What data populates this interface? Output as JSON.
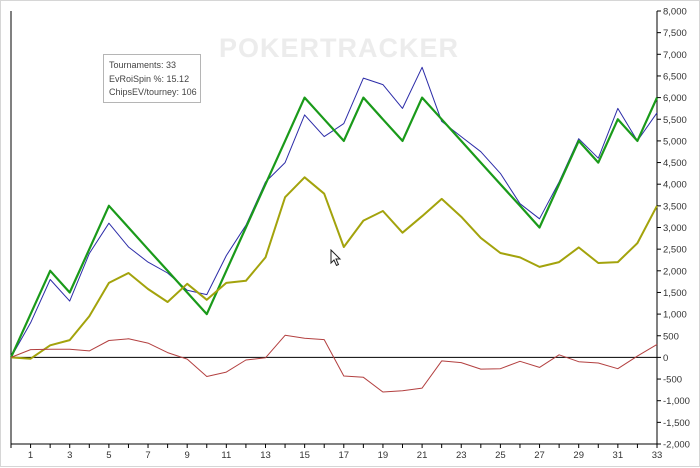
{
  "watermark": "POKERTRACKER",
  "info_box": {
    "tournaments_label": "Tournaments:",
    "tournaments_value": "33",
    "evroi_label": "EvRoiSpin %:",
    "evroi_value": "15.12",
    "chipsev_label": "ChipsEV/tourney:",
    "chipsev_value": "106"
  },
  "chart_data": {
    "type": "line",
    "title": "",
    "xlabel": "",
    "ylabel": "",
    "xlim": [
      0,
      33
    ],
    "ylim": [
      -2000,
      8000
    ],
    "grid": false,
    "x_tick_labels": [
      "1",
      "3",
      "5",
      "7",
      "9",
      "11",
      "13",
      "15",
      "17",
      "19",
      "21",
      "23",
      "25",
      "27",
      "29",
      "31",
      "33"
    ],
    "y_tick_labels": [
      "8,000",
      "7,500",
      "7,000",
      "6,500",
      "6,000",
      "5,500",
      "5,000",
      "4,500",
      "4,000",
      "3,500",
      "3,000",
      "2,500",
      "2,000",
      "1,500",
      "1,000",
      "500",
      "0",
      "-500",
      "-1,000",
      "-1,500",
      "-2,000"
    ],
    "x": [
      0,
      1,
      2,
      3,
      4,
      5,
      6,
      7,
      8,
      9,
      10,
      11,
      12,
      13,
      14,
      15,
      16,
      17,
      18,
      19,
      20,
      21,
      22,
      23,
      24,
      25,
      26,
      27,
      28,
      29,
      30,
      31,
      32,
      33
    ],
    "series": [
      {
        "color": "#2c2ca8",
        "width": 1.0,
        "values": [
          0,
          800,
          1800,
          1300,
          2400,
          3100,
          2550,
          2200,
          1950,
          1550,
          1450,
          2350,
          3050,
          4050,
          4500,
          5600,
          5100,
          5400,
          6450,
          6300,
          5750,
          6700,
          5450,
          5100,
          4750,
          4250,
          3550,
          3200,
          4050,
          5050,
          4600,
          5750,
          5000,
          5650
        ]
      },
      {
        "color": "#1a9a1a",
        "width": 2.2,
        "values": [
          0,
          1000,
          2000,
          1500,
          2500,
          3500,
          3000,
          2500,
          2000,
          1500,
          1000,
          2000,
          3000,
          4000,
          5000,
          6000,
          5500,
          5000,
          6000,
          5500,
          5000,
          6000,
          5500,
          5000,
          4500,
          4000,
          3500,
          3000,
          4000,
          5000,
          4500,
          5500,
          5000,
          6000
        ]
      },
      {
        "color": "#a3a30c",
        "width": 2.0,
        "values": [
          0,
          -30,
          280,
          400,
          950,
          1720,
          1950,
          1580,
          1280,
          1700,
          1330,
          1720,
          1770,
          2310,
          3700,
          4160,
          3780,
          2550,
          3160,
          3380,
          2880,
          3260,
          3660,
          3250,
          2760,
          2410,
          2310,
          2090,
          2200,
          2540,
          2180,
          2200,
          2640,
          3500
        ]
      },
      {
        "color": "#b34040",
        "width": 1.0,
        "values": [
          0,
          180,
          190,
          190,
          150,
          390,
          430,
          330,
          110,
          -40,
          -440,
          -340,
          -60,
          -10,
          510,
          440,
          410,
          -430,
          -460,
          -800,
          -770,
          -710,
          -80,
          -120,
          -270,
          -260,
          -90,
          -230,
          60,
          -100,
          -130,
          -260,
          30,
          300
        ]
      }
    ]
  }
}
